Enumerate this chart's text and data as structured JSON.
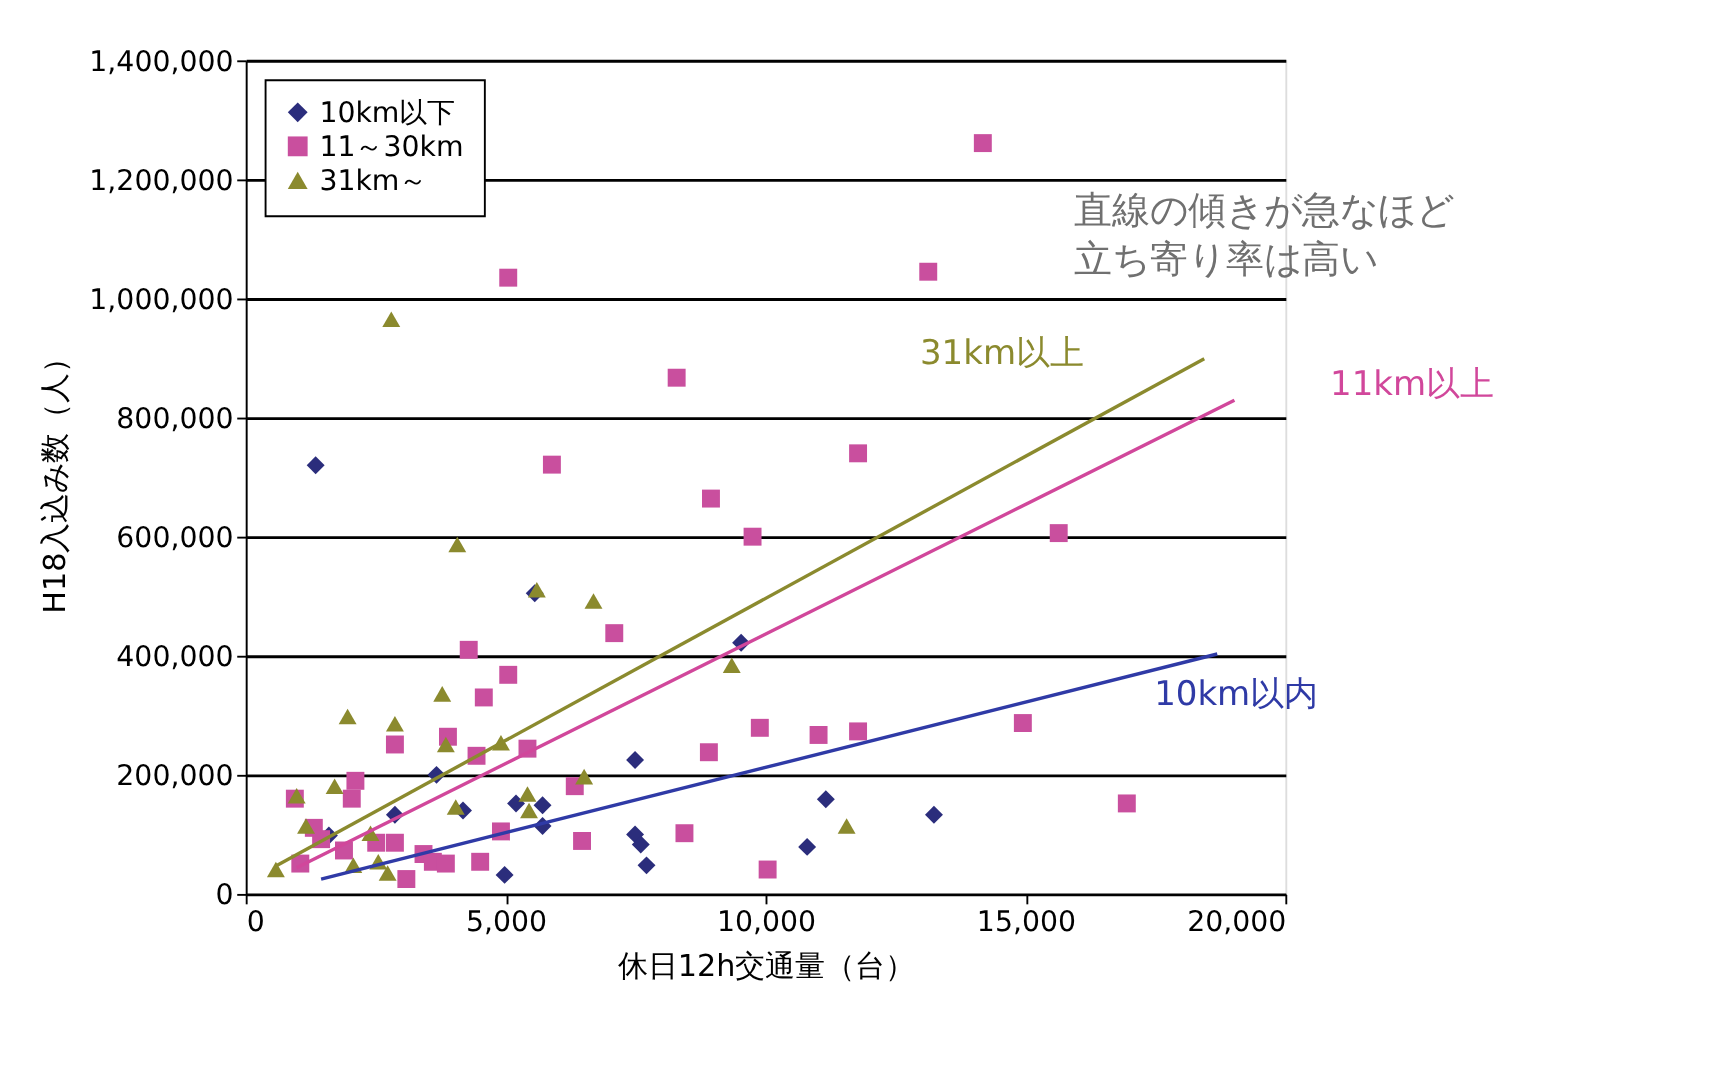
{
  "chart_data": {
    "type": "scatter",
    "xlabel": "休日12h交通量（台）",
    "ylabel": "H18入込み数（人）",
    "xlim": [
      0,
      20000
    ],
    "xticks": [
      0,
      {
        "value": 5000,
        "label": "5,000"
      },
      {
        "value": 10000,
        "label": "10,000"
      },
      {
        "value": 15000,
        "label": "15,000"
      },
      {
        "value": 20000,
        "label": "20,000"
      }
    ],
    "ylim": [
      0,
      1400000
    ],
    "yticks": [
      0,
      {
        "value": 200000,
        "label": "200,000"
      },
      {
        "value": 400000,
        "label": "400,000"
      },
      {
        "value": 600000,
        "label": "600,000"
      },
      {
        "value": 800000,
        "label": "800,000"
      },
      {
        "value": 1000000,
        "label": "1,000,000"
      },
      {
        "value": 1200000,
        "label": "1,200,000"
      },
      {
        "value": 1400000,
        "label": "1,400,000"
      }
    ],
    "grid": "y",
    "legend": "top left",
    "annotations": [
      "直線の傾きが急なほど",
      "立ち寄り率は高い"
    ],
    "series": [
      {
        "name": "10km以下",
        "color": "#2b2d7c",
        "marker": "diamond",
        "x": [
          1345,
          3670,
          4180,
          4980,
          5200,
          5710,
          5710,
          5560,
          9530,
          7490,
          7490,
          7600,
          7710,
          11160,
          10800,
          13240,
          1600,
          2870
        ],
        "values": [
          720000,
          200000,
          140000,
          32000,
          152000,
          149000,
          114000,
          505000,
          422000,
          225000,
          100000,
          83000,
          48000,
          159000,
          79000,
          133000,
          98000,
          133000
        ]
      },
      {
        "name": "11～30km",
        "color": "#c94f9e",
        "marker": "square",
        "x": [
          945,
          2110,
          2040,
          1050,
          1310,
          1450,
          1890,
          2510,
          2870,
          2870,
          3090,
          3420,
          3600,
          3850,
          4510,
          4910,
          3890,
          4440,
          4290,
          5050,
          4580,
          5420,
          6330,
          6470,
          7090,
          8910,
          9890,
          11020,
          11780,
          8440,
          10040,
          8290,
          5890,
          8950,
          14180,
          13130,
          11780,
          9750,
          15640,
          14950,
          16950,
          5050
        ],
        "values": [
          160000,
          190000,
          160000,
          51000,
          111000,
          92000,
          73000,
          86000,
          86000,
          251000,
          25000,
          67000,
          54000,
          51000,
          54000,
          105000,
          264000,
          232000,
          410000,
          368000,
          330000,
          244000,
          181000,
          89000,
          438000,
          238000,
          279000,
          267000,
          273000,
          102000,
          41000,
          867000,
          721000,
          664000,
          1261000,
          1045000,
          740000,
          600000,
          606000,
          287000,
          152000,
          1035000
        ]
      },
      {
        "name": "31km～",
        "color": "#8b8a2e",
        "marker": "triangle",
        "x": [
          2800,
          4070,
          5600,
          6690,
          580,
          980,
          1160,
          1710,
          1960,
          2870,
          2400,
          2070,
          2550,
          2730,
          3780,
          3850,
          4040,
          4910,
          5420,
          5450,
          6510,
          9350,
          11560
        ],
        "values": [
          965000,
          587000,
          511000,
          492000,
          41000,
          165000,
          114000,
          181000,
          298000,
          286000,
          102000,
          48000,
          54000,
          35000,
          336000,
          251000,
          146000,
          254000,
          168000,
          140000,
          197000,
          384000,
          114000
        ]
      },
      {
        "name": "31km以上",
        "type": "line",
        "color": "#8b8a2e",
        "x": [
          580,
          18440
        ],
        "values": [
          47000,
          899000
        ]
      },
      {
        "name": "11km以上",
        "type": "line",
        "color": "#d1479b",
        "x": [
          980,
          19020
        ],
        "values": [
          44000,
          829000
        ]
      },
      {
        "name": "10km以内",
        "type": "line",
        "color": "#2f3aa6",
        "x": [
          1450,
          18690
        ],
        "values": [
          25000,
          403000
        ]
      }
    ]
  }
}
